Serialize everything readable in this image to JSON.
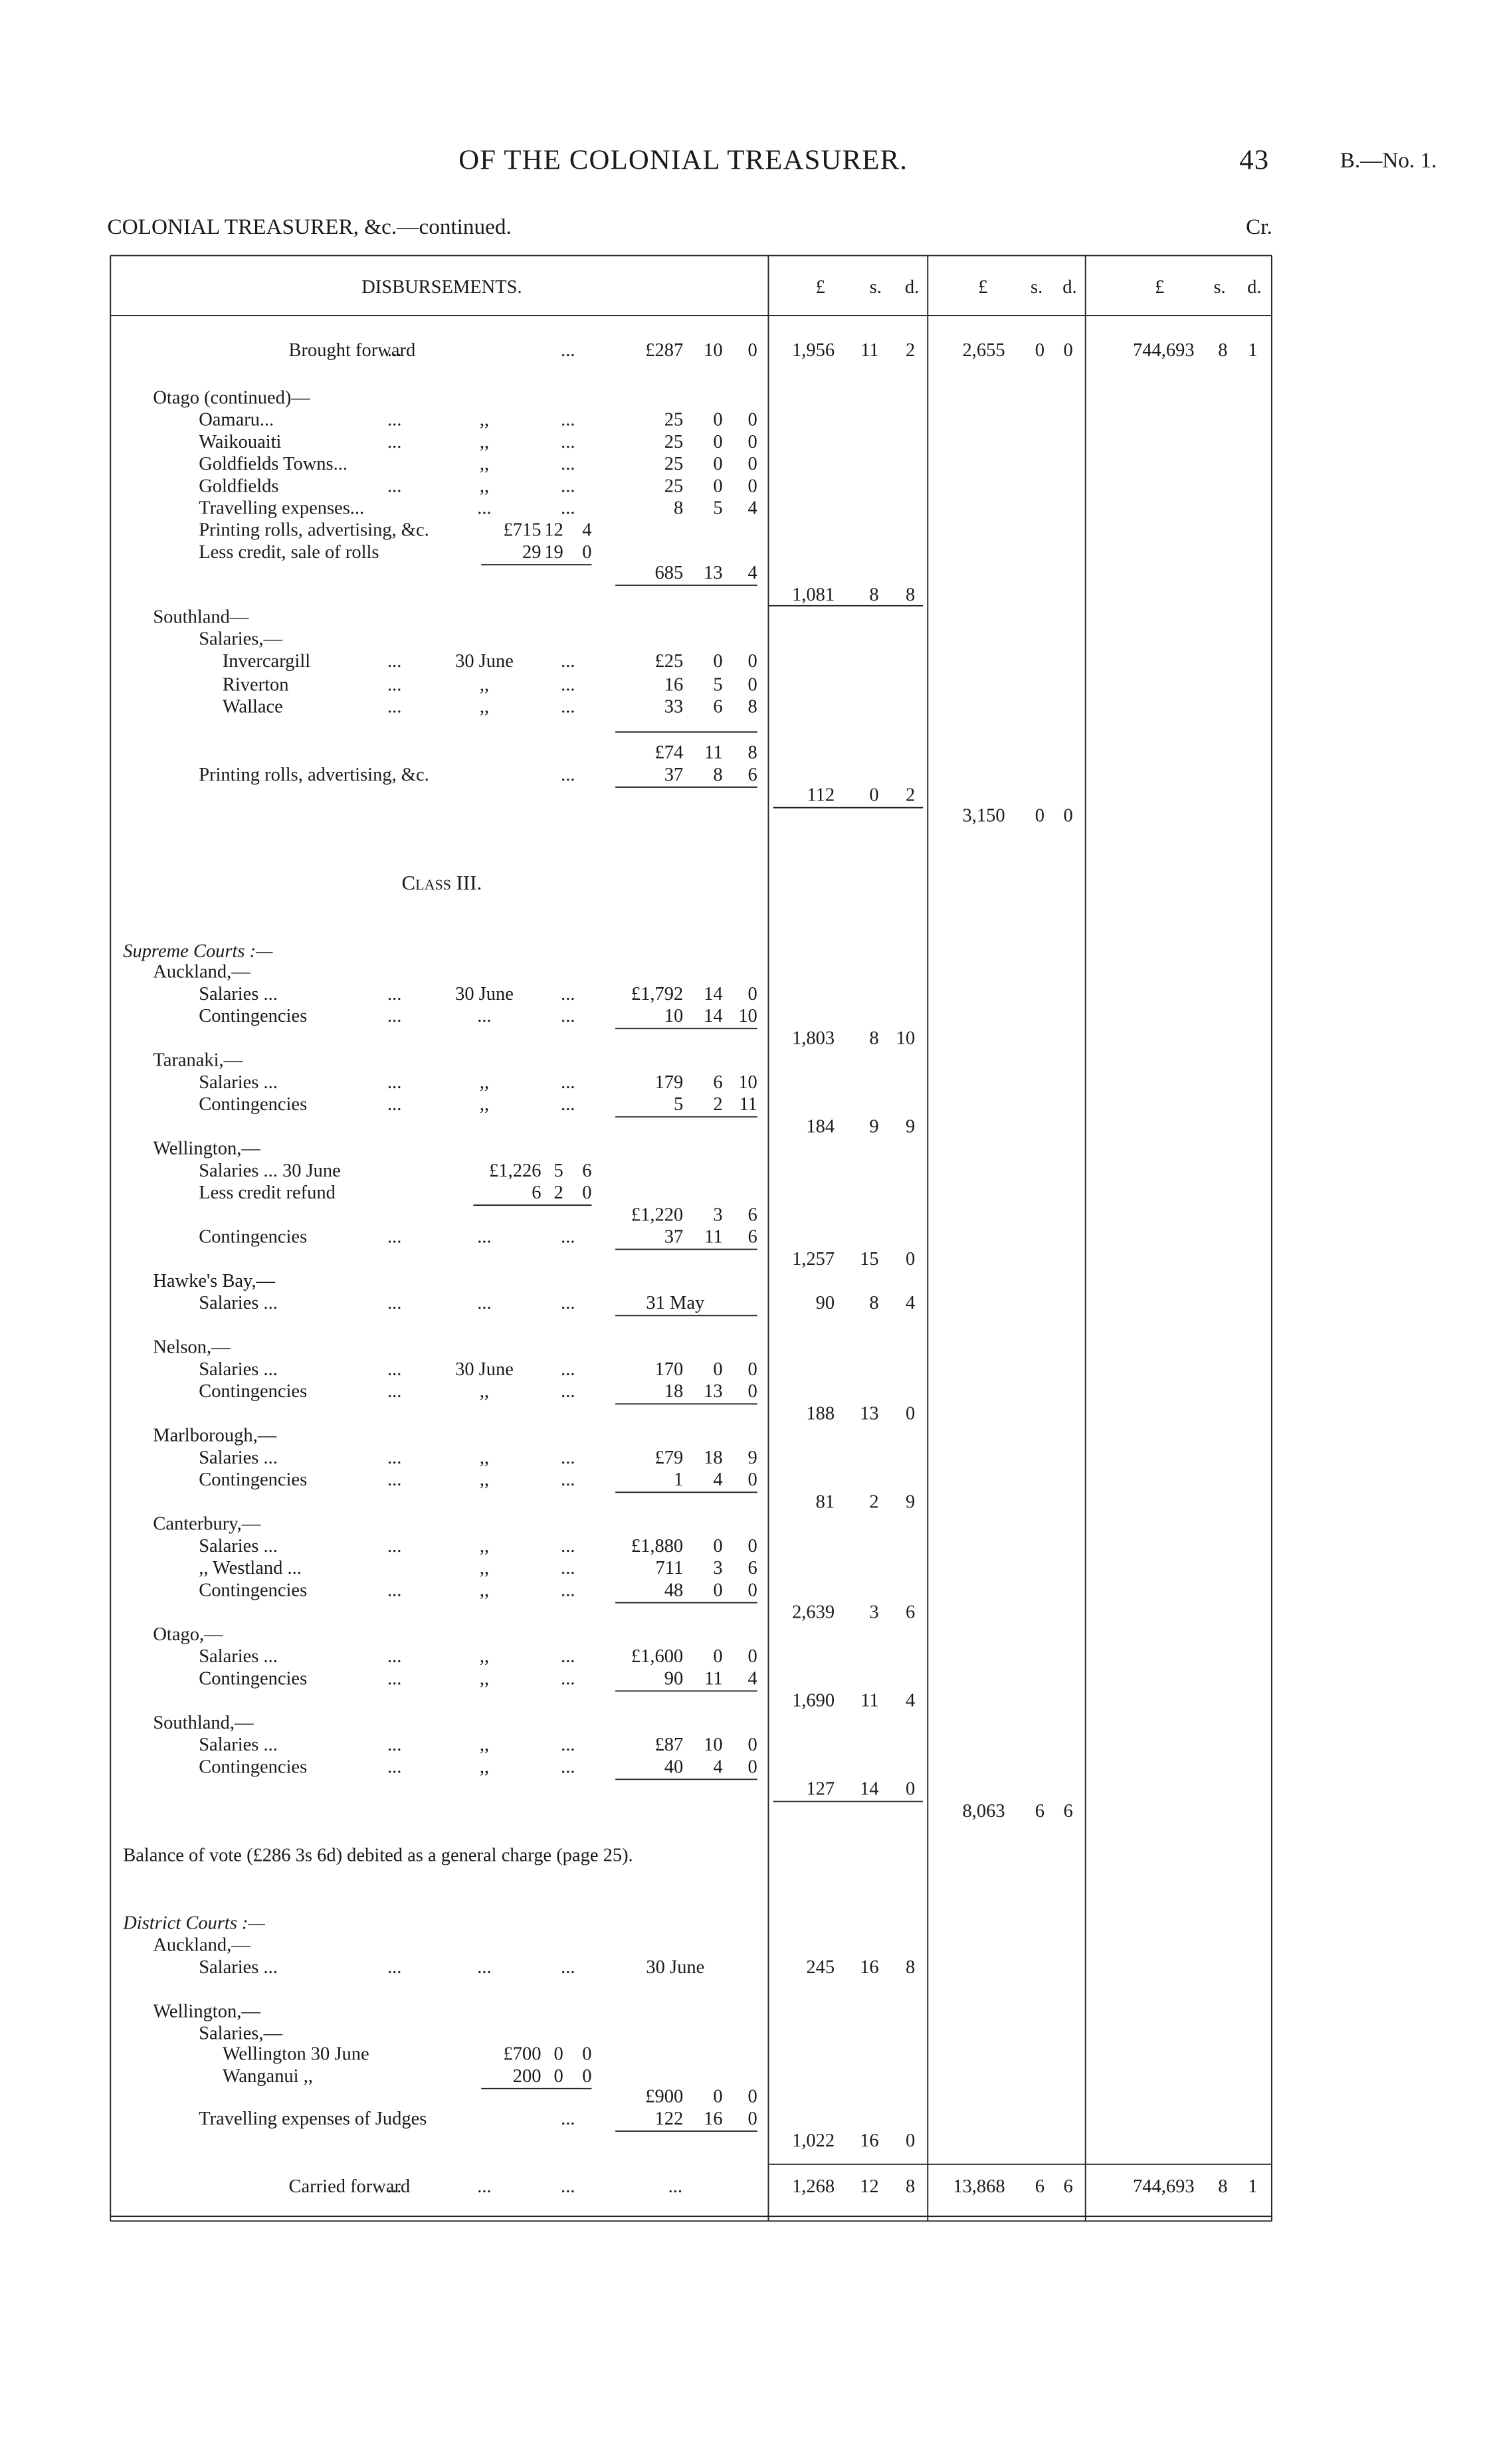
{
  "header": {
    "title": "OF THE COLONIAL TREASURER.",
    "page": "43",
    "ref": "B.—No. 1.",
    "subtitle": "COLONIAL TREASURER, &c.—continued.",
    "side": "Cr."
  },
  "table": {
    "heading": "DISBURSEMENTS.",
    "units": [
      [
        "£",
        "s.",
        "d."
      ],
      [
        "£",
        "s.",
        "d."
      ],
      [
        "£",
        "s.",
        "d."
      ]
    ],
    "rows": [
      {
        "l": "Brought forward",
        "a": "...",
        "c": "...",
        "sub": [
          "£287",
          "10",
          "0"
        ],
        "c1": [
          "1,956",
          "11",
          "2"
        ],
        "c2": [
          "2,655",
          "0",
          "0"
        ],
        "c3": [
          "744,693",
          "8",
          "1"
        ]
      },
      {
        "l": "Otago (continued)—"
      },
      {
        "l": "Oamaru...",
        "a": "...",
        "b": ",,",
        "c": "...",
        "sub": [
          "25",
          "0",
          "0"
        ]
      },
      {
        "l": "Waikouaiti",
        "a": "...",
        "b": ",,",
        "c": "...",
        "sub": [
          "25",
          "0",
          "0"
        ]
      },
      {
        "l": "Goldfields Towns...",
        "b": ",,",
        "c": "...",
        "sub": [
          "25",
          "0",
          "0"
        ]
      },
      {
        "l": "Goldfields",
        "a": "...",
        "b": ",,",
        "c": "...",
        "sub": [
          "25",
          "0",
          "0"
        ]
      },
      {
        "l": "Travelling expenses...",
        "b": "...",
        "c": "...",
        "sub": [
          "8",
          "5",
          "4"
        ]
      },
      {
        "l": "Printing rolls, advertising, &c.",
        "inner": [
          "£715",
          "12",
          "4"
        ]
      },
      {
        "l": "Less credit, sale of rolls",
        "inner": [
          "29",
          "19",
          "0"
        ]
      },
      {
        "sub": [
          "685",
          "13",
          "4"
        ]
      },
      {
        "c1": [
          "1,081",
          "8",
          "8"
        ]
      },
      {
        "l": "Southland—"
      },
      {
        "l": "Salaries,—"
      },
      {
        "l": "Invercargill",
        "a": "...",
        "b": "30 June",
        "c": "...",
        "sub": [
          "£25",
          "0",
          "0"
        ]
      },
      {
        "l": "Riverton",
        "a": "...",
        "b": ",,",
        "c": "...",
        "sub": [
          "16",
          "5",
          "0"
        ]
      },
      {
        "l": "Wallace",
        "a": "...",
        "b": ",,",
        "c": "...",
        "sub": [
          "33",
          "6",
          "8"
        ]
      },
      {
        "sub": [
          "£74",
          "11",
          "8"
        ]
      },
      {
        "l": "Printing rolls, advertising, &c.",
        "c": "...",
        "sub": [
          "37",
          "8",
          "6"
        ]
      },
      {
        "c1": [
          "112",
          "0",
          "2"
        ]
      },
      {
        "c2": [
          "3,150",
          "0",
          "0"
        ]
      },
      {
        "l": "Class III."
      },
      {
        "l": "Supreme Courts :—"
      },
      {
        "l": "Auckland,—"
      },
      {
        "l": "Salaries ...",
        "a": "...",
        "b": "30 June",
        "c": "...",
        "sub": [
          "£1,792",
          "14",
          "0"
        ]
      },
      {
        "l": "Contingencies",
        "a": "...",
        "b": "...",
        "c": "...",
        "sub": [
          "10",
          "14",
          "10"
        ]
      },
      {
        "c1": [
          "1,803",
          "8",
          "10"
        ]
      },
      {
        "l": "Taranaki,—"
      },
      {
        "l": "Salaries ...",
        "a": "...",
        "b": ",,",
        "c": "...",
        "sub": [
          "179",
          "6",
          "10"
        ]
      },
      {
        "l": "Contingencies",
        "a": "...",
        "b": ",,",
        "c": "...",
        "sub": [
          "5",
          "2",
          "11"
        ]
      },
      {
        "c1": [
          "184",
          "9",
          "9"
        ]
      },
      {
        "l": "Wellington,—"
      },
      {
        "l": "Salaries ...  30 June",
        "inner": [
          "£1,226",
          "5",
          "6"
        ]
      },
      {
        "l": "Less credit refund",
        "inner": [
          "6",
          "2",
          "0"
        ]
      },
      {
        "sub": [
          "£1,220",
          "3",
          "6"
        ]
      },
      {
        "l": "Contingencies",
        "a": "...",
        "b": "...",
        "c": "...",
        "sub": [
          "37",
          "11",
          "6"
        ]
      },
      {
        "c1": [
          "1,257",
          "15",
          "0"
        ]
      },
      {
        "l": "Hawke's Bay,—"
      },
      {
        "l": "Salaries ...",
        "a": "...",
        "b": "...",
        "c": "...",
        "st": "31 May",
        "c1": [
          "90",
          "8",
          "4"
        ]
      },
      {
        "l": "Nelson,—"
      },
      {
        "l": "Salaries ...",
        "a": "...",
        "b": "30 June",
        "c": "...",
        "sub": [
          "170",
          "0",
          "0"
        ]
      },
      {
        "l": "Contingencies",
        "a": "...",
        "b": ",,",
        "c": "...",
        "sub": [
          "18",
          "13",
          "0"
        ]
      },
      {
        "c1": [
          "188",
          "13",
          "0"
        ]
      },
      {
        "l": "Marlborough,—"
      },
      {
        "l": "Salaries ...",
        "a": "...",
        "b": ",,",
        "c": "...",
        "sub": [
          "£79",
          "18",
          "9"
        ]
      },
      {
        "l": "Contingencies",
        "a": "...",
        "b": ",,",
        "c": "...",
        "sub": [
          "1",
          "4",
          "0"
        ]
      },
      {
        "c1": [
          "81",
          "2",
          "9"
        ]
      },
      {
        "l": "Canterbury,—"
      },
      {
        "l": "Salaries ...",
        "a": "...",
        "b": ",,",
        "c": "...",
        "sub": [
          "£1,880",
          "0",
          "0"
        ]
      },
      {
        "l": ",,  Westland ...",
        "b": ",,",
        "c": "...",
        "sub": [
          "711",
          "3",
          "6"
        ]
      },
      {
        "l": "Contingencies",
        "a": "...",
        "b": ",,",
        "c": "...",
        "sub": [
          "48",
          "0",
          "0"
        ]
      },
      {
        "c1": [
          "2,639",
          "3",
          "6"
        ]
      },
      {
        "l": "Otago,—"
      },
      {
        "l": "Salaries ...",
        "a": "...",
        "b": ",,",
        "c": "...",
        "sub": [
          "£1,600",
          "0",
          "0"
        ]
      },
      {
        "l": "Contingencies",
        "a": "...",
        "b": ",,",
        "c": "...",
        "sub": [
          "90",
          "11",
          "4"
        ]
      },
      {
        "c1": [
          "1,690",
          "11",
          "4"
        ]
      },
      {
        "l": "Southland,—"
      },
      {
        "l": "Salaries ...",
        "a": "...",
        "b": ",,",
        "c": "...",
        "sub": [
          "£87",
          "10",
          "0"
        ]
      },
      {
        "l": "Contingencies",
        "a": "...",
        "b": ",,",
        "c": "...",
        "sub": [
          "40",
          "4",
          "0"
        ]
      },
      {
        "c1": [
          "127",
          "14",
          "0"
        ]
      },
      {
        "c2": [
          "8,063",
          "6",
          "6"
        ]
      },
      {
        "l": "Balance of vote (£286 3s 6d) debited as a general charge (page 25)."
      },
      {
        "l": "District Courts :—"
      },
      {
        "l": "Auckland,—"
      },
      {
        "l": "Salaries ...",
        "a": "...",
        "b": "...",
        "c": "...",
        "st": "30 June",
        "c1": [
          "245",
          "16",
          "8"
        ]
      },
      {
        "l": "Wellington,—"
      },
      {
        "l": "Salaries,—"
      },
      {
        "l": "Wellington     30 June",
        "inner": [
          "£700",
          "0",
          "0"
        ]
      },
      {
        "l": "Wanganui        ,,",
        "inner": [
          "200",
          "0",
          "0"
        ]
      },
      {
        "sub": [
          "£900",
          "0",
          "0"
        ]
      },
      {
        "l": "Travelling expenses of Judges",
        "c": "...",
        "sub": [
          "122",
          "16",
          "0"
        ]
      },
      {
        "c1": [
          "1,022",
          "16",
          "0"
        ]
      },
      {
        "l": "Carried forward",
        "a": "...",
        "b": "...",
        "c": "...",
        "st": "...",
        "c1": [
          "1,268",
          "12",
          "8"
        ],
        "c2": [
          "13,868",
          "6",
          "6"
        ],
        "c3": [
          "744,693",
          "8",
          "1"
        ]
      }
    ]
  }
}
